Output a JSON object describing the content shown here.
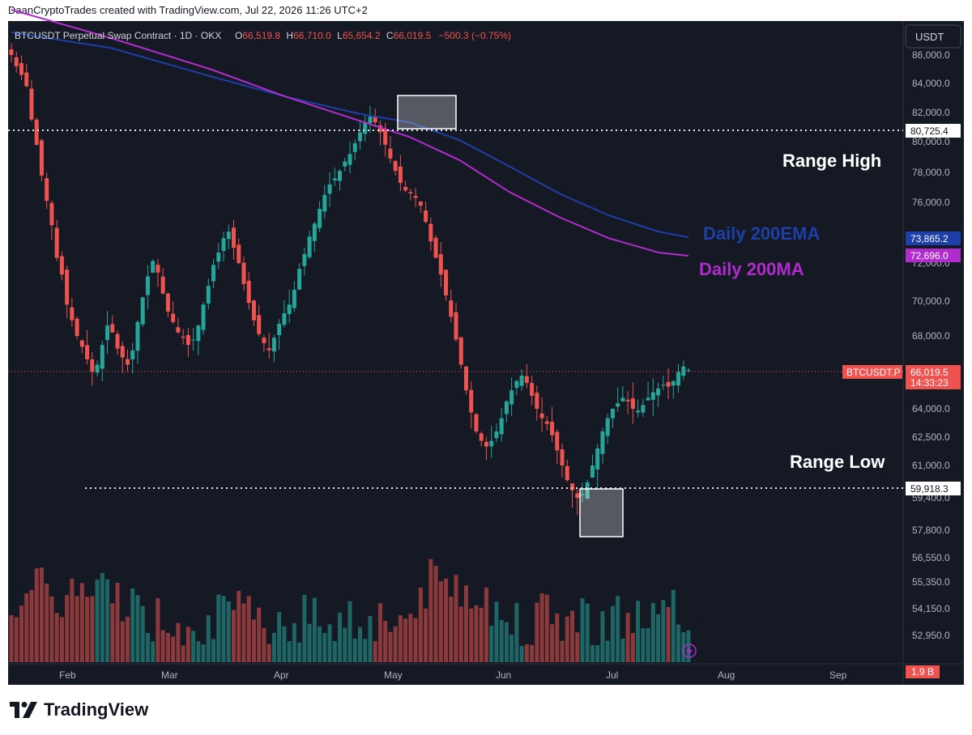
{
  "header": {
    "credit": "DaanCryptoTrades created with TradingView.com, Jul 22, 2026 11:26 UTC+2"
  },
  "legend": {
    "symbol": "BTCUSDT Perpetual Swap Contract · 1D · OKX",
    "o_label": "O",
    "o_value": "66,519.8",
    "h_label": "H",
    "h_value": "66,710.0",
    "l_label": "L",
    "l_value": "65,654.2",
    "c_label": "C",
    "c_value": "66,019.5",
    "change": "−500.3 (−0.75%)"
  },
  "currency_button": "USDT",
  "annotations": {
    "range_high": "Range High",
    "range_low": "Range Low",
    "ema_label": "Daily 200EMA",
    "ma_label": "Daily 200MA"
  },
  "price_tags": {
    "range_high": "80,725.4",
    "ema": "73,865.2",
    "ma": "72,696.0",
    "symbol_name": "BTCUSDT.P",
    "last": "66,019.5",
    "countdown": "14:33:23",
    "range_low": "59,918.3",
    "volume": "1.9 B"
  },
  "footer": {
    "brand": "TradingView"
  },
  "colors": {
    "background": "#151924",
    "up": "#26a69a",
    "down": "#ef5350",
    "ema": "#1e3ea8",
    "ma": "#b02ccc",
    "text": "#d1d4dc"
  },
  "chart_data": {
    "type": "candlestick",
    "title": "BTCUSDT Perpetual Swap Contract · 1D · OKX",
    "ylim": [
      52950,
      86800
    ],
    "y_ticks": [
      "86,000.0",
      "84,000.0",
      "82,000.0",
      "80,000.0",
      "78,000.0",
      "76,000.0",
      "72,000.0",
      "70,000.0",
      "68,000.0",
      "64,000.0",
      "62,500.0",
      "61,000.0",
      "59,400.0",
      "57,800.0",
      "56,550.0",
      "55,350.0",
      "54,150.0",
      "52,950.0"
    ],
    "x_ticks": [
      "Feb",
      "Mar",
      "Apr",
      "May",
      "Jun",
      "Jul",
      "Aug",
      "Sep"
    ],
    "last_price": 66019.5,
    "range_high": 80725.4,
    "range_low": 59918.3,
    "ema200_last": 73865.2,
    "ma200_last": 72696.0,
    "candle_path_close": [
      86000,
      85200,
      84600,
      83800,
      81500,
      79800,
      77800,
      76100,
      74600,
      72500,
      71400,
      69800,
      68900,
      68000,
      67400,
      66700,
      66000,
      66400,
      67500,
      68600,
      68200,
      67300,
      66800,
      66400,
      67200,
      68800,
      70200,
      71300,
      72200,
      71500,
      70400,
      69400,
      68800,
      68200,
      67900,
      67500,
      67800,
      68600,
      69800,
      70800,
      71900,
      72900,
      73800,
      74200,
      73200,
      72000,
      70900,
      69900,
      68900,
      68100,
      67600,
      67200,
      67900,
      68700,
      69300,
      69800,
      70600,
      71700,
      72800,
      73900,
      74700,
      75600,
      76500,
      77200,
      77600,
      78100,
      78700,
      79200,
      79900,
      80600,
      81300,
      81700,
      81300,
      80600,
      79800,
      78900,
      78100,
      77300,
      76800,
      76600,
      76300,
      75800,
      74800,
      73600,
      72500,
      71400,
      70300,
      69100,
      67800,
      66400,
      65000,
      63800,
      62800,
      62300,
      62000,
      62300,
      62800,
      63500,
      64400,
      65000,
      65500,
      65800,
      65400,
      64700,
      64000,
      63500,
      63200,
      62600,
      61800,
      61000,
      60300,
      59800,
      59400,
      59600,
      60200,
      61000,
      61900,
      62800,
      63500,
      64000,
      64300,
      64600,
      64400,
      64000,
      63900,
      64200,
      64600,
      64900,
      65100,
      65300,
      65200,
      65500,
      66000,
      66300,
      66100
    ],
    "ema200_path": [
      [
        0,
        87600
      ],
      [
        40,
        86500
      ],
      [
        80,
        84500
      ],
      [
        110,
        83100
      ],
      [
        140,
        81900
      ],
      [
        160,
        81300
      ],
      [
        180,
        80100
      ],
      [
        200,
        78400
      ],
      [
        220,
        76600
      ],
      [
        240,
        75200
      ],
      [
        260,
        74200
      ],
      [
        272,
        73865
      ]
    ],
    "ma200_path": [
      [
        0,
        89200
      ],
      [
        40,
        87200
      ],
      [
        80,
        85000
      ],
      [
        110,
        83100
      ],
      [
        140,
        81400
      ],
      [
        160,
        80300
      ],
      [
        180,
        78800
      ],
      [
        200,
        76700
      ],
      [
        220,
        75100
      ],
      [
        240,
        73800
      ],
      [
        260,
        72900
      ],
      [
        272,
        72696
      ]
    ],
    "volume_last": "1.9 B"
  }
}
